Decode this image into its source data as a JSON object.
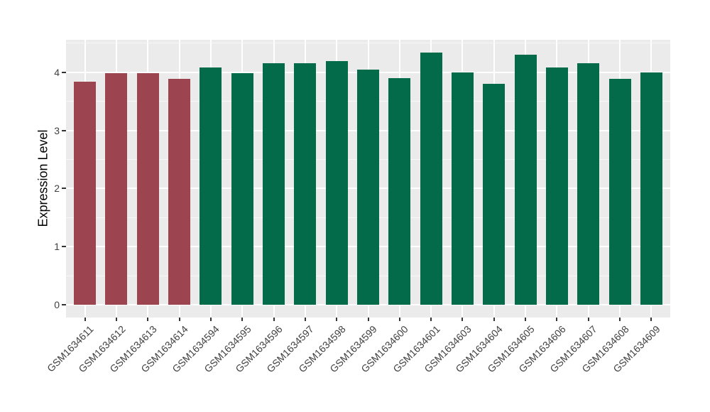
{
  "chart_data": {
    "type": "bar",
    "title": "",
    "xlabel": "",
    "ylabel": "Expression Level",
    "categories": [
      "GSM1634611",
      "GSM1634612",
      "GSM1634613",
      "GSM1634614",
      "GSM1634594",
      "GSM1634595",
      "GSM1634596",
      "GSM1634597",
      "GSM1634598",
      "GSM1634599",
      "GSM1634600",
      "GSM1634601",
      "GSM1634603",
      "GSM1634604",
      "GSM1634605",
      "GSM1634606",
      "GSM1634607",
      "GSM1634608",
      "GSM1634609"
    ],
    "values": [
      3.84,
      3.98,
      3.98,
      3.88,
      4.08,
      3.98,
      4.16,
      4.16,
      4.19,
      4.04,
      3.9,
      4.34,
      4.0,
      3.8,
      4.3,
      4.08,
      4.16,
      3.89,
      4.0
    ],
    "colors": [
      "#9C4551",
      "#9C4551",
      "#9C4551",
      "#9C4551",
      "#046B4A",
      "#046B4A",
      "#046B4A",
      "#046B4A",
      "#046B4A",
      "#046B4A",
      "#046B4A",
      "#046B4A",
      "#046B4A",
      "#046B4A",
      "#046B4A",
      "#046B4A",
      "#046B4A",
      "#046B4A",
      "#046B4A"
    ],
    "yticks": [
      "0",
      "1",
      "2",
      "3",
      "4"
    ],
    "ytick_values": [
      0,
      1,
      2,
      3,
      4
    ],
    "ylim": [
      0,
      4.56
    ],
    "bar_width_ratio": 0.7,
    "legend_position": "none",
    "grid": "horizontal major+minor and vertical major, white on grey panel",
    "panel_bg": "#EBEBEB",
    "grid_color": "#FFFFFF",
    "axis_text_color": "#404040",
    "tick_color": "#333333"
  }
}
